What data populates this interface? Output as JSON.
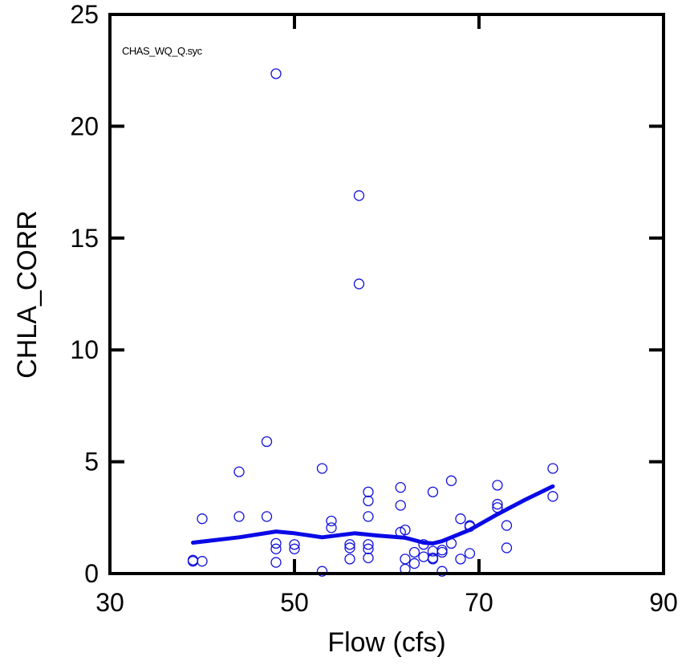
{
  "chart_data": {
    "type": "scatter",
    "title": "",
    "annotation": "CHAS_WQ_Q.syc",
    "xlabel": "Flow (cfs)",
    "ylabel": "CHLA_CORR",
    "xlim": [
      30,
      90
    ],
    "ylim": [
      0,
      25
    ],
    "xticks": [
      "30",
      "50",
      "70",
      "90"
    ],
    "yticks": [
      "0",
      "5",
      "10",
      "15",
      "20",
      "25"
    ],
    "grid": false,
    "legend": "none",
    "colors": {
      "points": "#1010dd",
      "smooth": "#0a0ae6",
      "axes": "#000000"
    },
    "series": [
      {
        "kind": "points",
        "points": [
          [
            39,
            0.6
          ],
          [
            39,
            0.55
          ],
          [
            40,
            2.45
          ],
          [
            40,
            0.55
          ],
          [
            44,
            4.55
          ],
          [
            44,
            2.55
          ],
          [
            47,
            5.9
          ],
          [
            47,
            2.55
          ],
          [
            48,
            22.35
          ],
          [
            48,
            1.35
          ],
          [
            48,
            1.1
          ],
          [
            48,
            0.5
          ],
          [
            50,
            1.3
          ],
          [
            50,
            1.1
          ],
          [
            53,
            4.7
          ],
          [
            53,
            0.1
          ],
          [
            54,
            2.35
          ],
          [
            54,
            2.05
          ],
          [
            56,
            1.3
          ],
          [
            56,
            1.15
          ],
          [
            56,
            0.65
          ],
          [
            57,
            16.9
          ],
          [
            57,
            12.95
          ],
          [
            58,
            3.65
          ],
          [
            58,
            3.25
          ],
          [
            58,
            2.55
          ],
          [
            58,
            1.3
          ],
          [
            58,
            1.1
          ],
          [
            58,
            0.7
          ],
          [
            61.5,
            3.85
          ],
          [
            61.5,
            3.05
          ],
          [
            61.5,
            1.85
          ],
          [
            62,
            1.95
          ],
          [
            62,
            0.65
          ],
          [
            62,
            0.2
          ],
          [
            63,
            0.95
          ],
          [
            63,
            0.45
          ],
          [
            64,
            1.3
          ],
          [
            64,
            0.75
          ],
          [
            65,
            3.65
          ],
          [
            65,
            1.0
          ],
          [
            65,
            0.7
          ],
          [
            65,
            0.65
          ],
          [
            66,
            1.05
          ],
          [
            66,
            0.95
          ],
          [
            66,
            0.1
          ],
          [
            67,
            4.15
          ],
          [
            67,
            1.35
          ],
          [
            68,
            2.45
          ],
          [
            68,
            0.65
          ],
          [
            69,
            2.15
          ],
          [
            69,
            2.1
          ],
          [
            69,
            0.9
          ],
          [
            72,
            3.95
          ],
          [
            72,
            3.1
          ],
          [
            72,
            2.95
          ],
          [
            73,
            2.15
          ],
          [
            73,
            1.15
          ],
          [
            78,
            4.7
          ],
          [
            78,
            3.45
          ]
        ]
      },
      {
        "kind": "smooth",
        "points": [
          [
            39,
            1.38
          ],
          [
            44,
            1.62
          ],
          [
            48,
            1.88
          ],
          [
            50,
            1.8
          ],
          [
            53,
            1.62
          ],
          [
            56.5,
            1.8
          ],
          [
            59,
            1.7
          ],
          [
            62,
            1.6
          ],
          [
            64,
            1.38
          ],
          [
            65,
            1.35
          ],
          [
            66,
            1.45
          ],
          [
            69,
            1.95
          ],
          [
            72,
            2.65
          ],
          [
            75,
            3.3
          ],
          [
            78,
            3.9
          ]
        ]
      }
    ]
  }
}
